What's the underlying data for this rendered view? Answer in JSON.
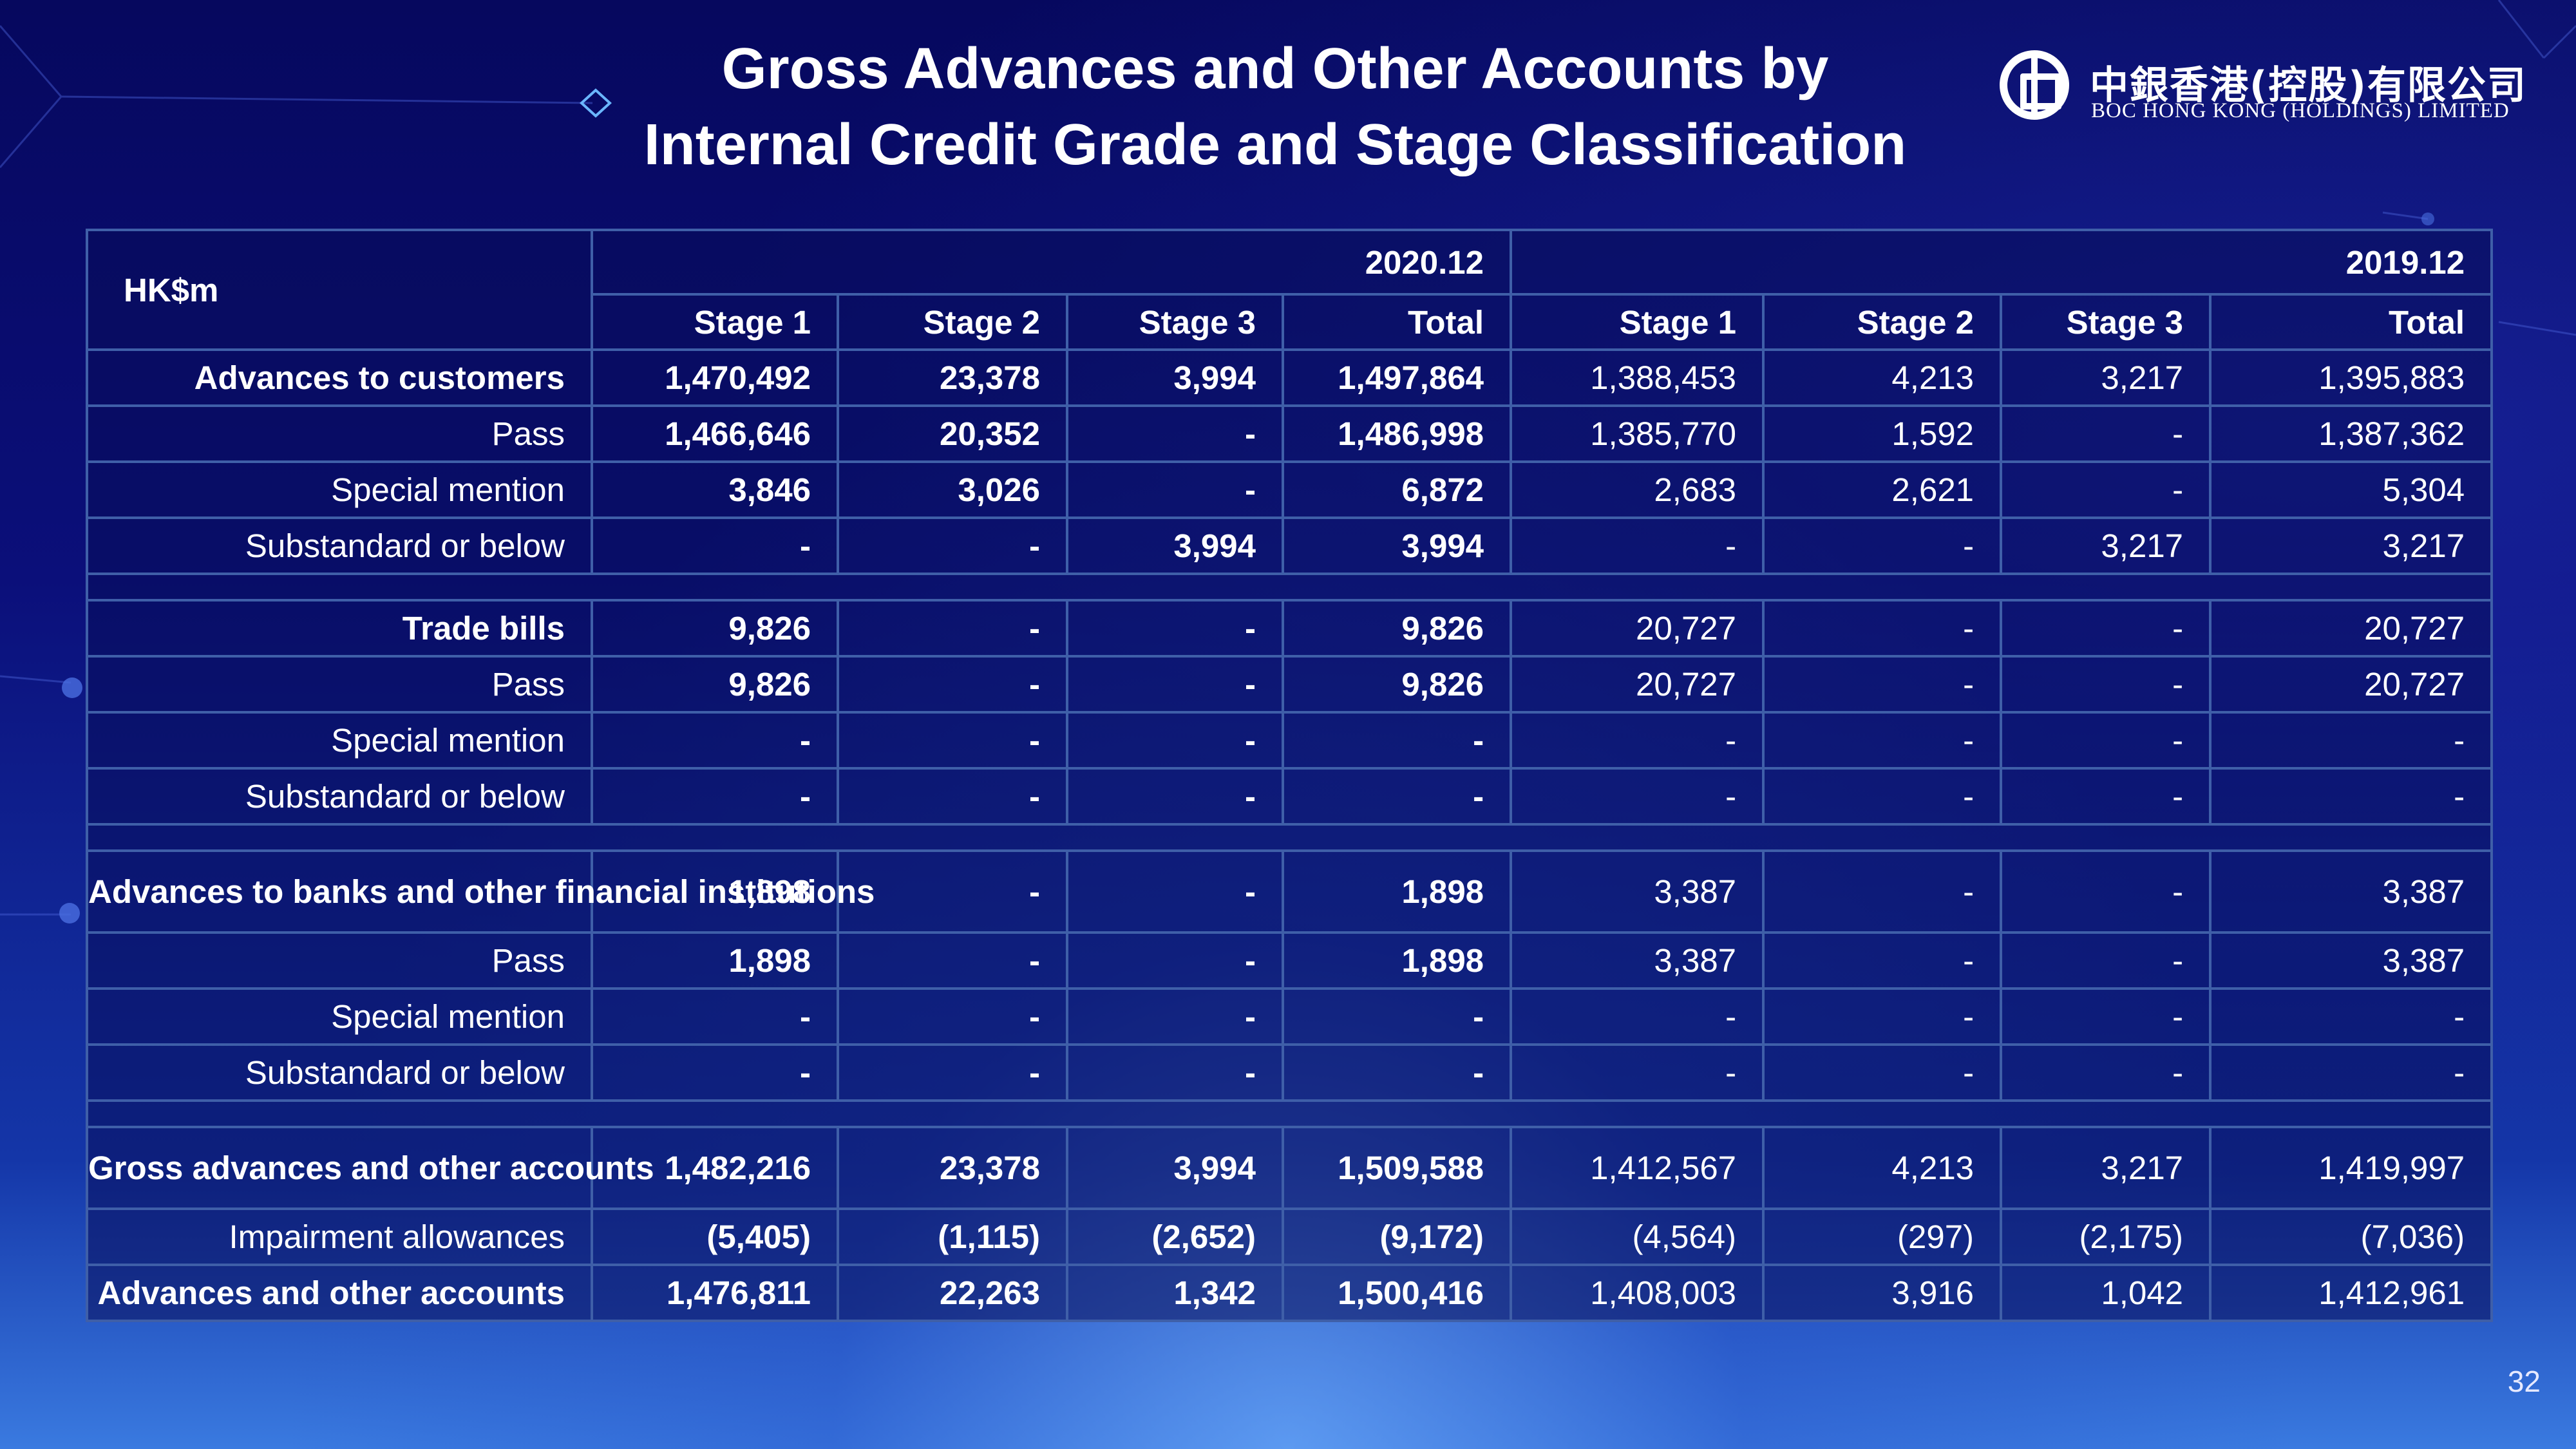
{
  "title_line1": "Gross Advances and Other Accounts by",
  "title_line2": "Internal Credit Grade and Stage Classification",
  "logo": {
    "cn": "中銀香港(控股)有限公司",
    "en": "BOC HONG KONG (HOLDINGS) LIMITED"
  },
  "table": {
    "unit": "HK$m",
    "periods": [
      "2020.12",
      "2019.12"
    ],
    "stage_headers": [
      "Stage 1",
      "Stage 2",
      "Stage 3",
      "Total",
      "Stage 1",
      "Stage 2",
      "Stage 3",
      "Total"
    ],
    "sections": [
      {
        "rows": [
          {
            "label": "Advances to customers",
            "bold": true,
            "values": [
              "1,470,492",
              "23,378",
              "3,994",
              "1,497,864",
              "1,388,453",
              "4,213",
              "3,217",
              "1,395,883"
            ]
          },
          {
            "label": "Pass",
            "bold": false,
            "values": [
              "1,466,646",
              "20,352",
              "-",
              "1,486,998",
              "1,385,770",
              "1,592",
              "-",
              "1,387,362"
            ]
          },
          {
            "label": "Special mention",
            "bold": false,
            "values": [
              "3,846",
              "3,026",
              "-",
              "6,872",
              "2,683",
              "2,621",
              "-",
              "5,304"
            ]
          },
          {
            "label": "Substandard or below",
            "bold": false,
            "values": [
              "-",
              "-",
              "3,994",
              "3,994",
              "-",
              "-",
              "3,217",
              "3,217"
            ]
          }
        ]
      },
      {
        "rows": [
          {
            "label": "Trade bills",
            "bold": true,
            "values": [
              "9,826",
              "-",
              "-",
              "9,826",
              "20,727",
              "-",
              "-",
              "20,727"
            ]
          },
          {
            "label": "Pass",
            "bold": false,
            "values": [
              "9,826",
              "-",
              "-",
              "9,826",
              "20,727",
              "-",
              "-",
              "20,727"
            ]
          },
          {
            "label": "Special mention",
            "bold": false,
            "values": [
              "-",
              "-",
              "-",
              "-",
              "-",
              "-",
              "-",
              "-"
            ]
          },
          {
            "label": "Substandard or below",
            "bold": false,
            "values": [
              "-",
              "-",
              "-",
              "-",
              "-",
              "-",
              "-",
              "-"
            ]
          }
        ]
      },
      {
        "rows": [
          {
            "label": "Advances to banks and other financial institutions",
            "bold": true,
            "values": [
              "1,898",
              "-",
              "-",
              "1,898",
              "3,387",
              "-",
              "-",
              "3,387"
            ]
          },
          {
            "label": "Pass",
            "bold": false,
            "values": [
              "1,898",
              "-",
              "-",
              "1,898",
              "3,387",
              "-",
              "-",
              "3,387"
            ]
          },
          {
            "label": "Special mention",
            "bold": false,
            "values": [
              "-",
              "-",
              "-",
              "-",
              "-",
              "-",
              "-",
              "-"
            ]
          },
          {
            "label": "Substandard or below",
            "bold": false,
            "values": [
              "-",
              "-",
              "-",
              "-",
              "-",
              "-",
              "-",
              "-"
            ]
          }
        ]
      },
      {
        "rows": [
          {
            "label": "Gross advances and other accounts",
            "bold": true,
            "values": [
              "1,482,216",
              "23,378",
              "3,994",
              "1,509,588",
              "1,412,567",
              "4,213",
              "3,217",
              "1,419,997"
            ]
          },
          {
            "label": "Impairment allowances",
            "bold": false,
            "values": [
              "(5,405)",
              "(1,115)",
              "(2,652)",
              "(9,172)",
              "(4,564)",
              "(297)",
              "(2,175)",
              "(7,036)"
            ]
          },
          {
            "label": "Advances and other accounts",
            "bold": true,
            "values": [
              "1,476,811",
              "22,263",
              "1,342",
              "1,500,416",
              "1,408,003",
              "3,916",
              "1,042",
              "1,412,961"
            ]
          }
        ]
      }
    ]
  },
  "page_number": "32",
  "colors": {
    "background": "#0a0a6e",
    "header_fill": "#0a1898",
    "grid_line": "#3f5fa8",
    "text": "#ffffff"
  }
}
